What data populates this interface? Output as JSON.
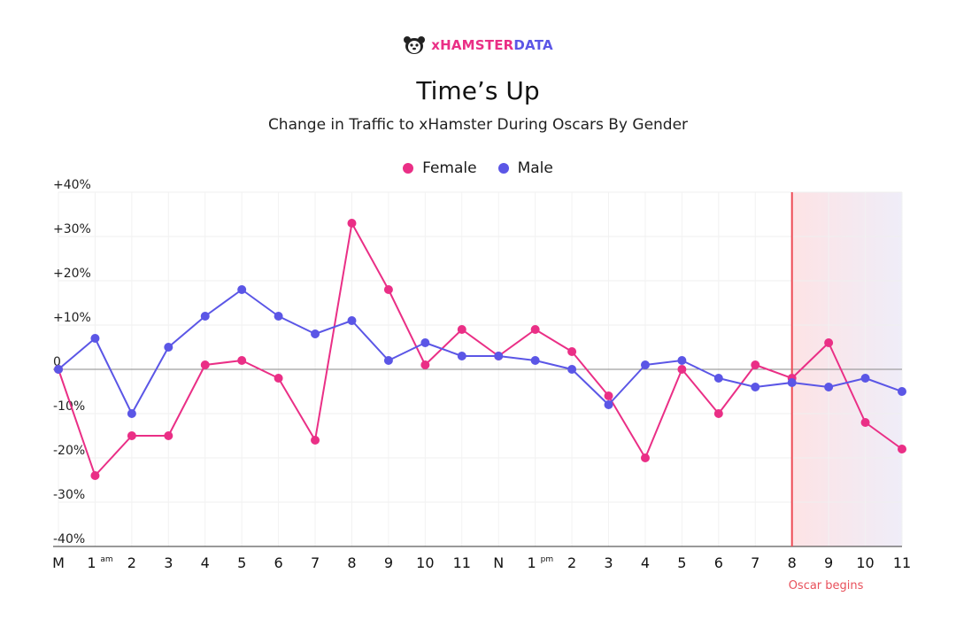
{
  "brand": {
    "text_x": "xHAMSTER",
    "text_data": "DATA",
    "icon": "hamster-logo-icon"
  },
  "chart_data": {
    "type": "line",
    "title": "Time’s Up",
    "subtitle": "Change in Traffic to xHamster During Oscars By Gender",
    "ylim": [
      -40,
      40
    ],
    "yticks": [
      {
        "value": 40,
        "label": "+40%"
      },
      {
        "value": 30,
        "label": "+30%"
      },
      {
        "value": 20,
        "label": "+20%"
      },
      {
        "value": 10,
        "label": "+10%"
      },
      {
        "value": 0,
        "label": "0"
      },
      {
        "value": -10,
        "label": "-10%"
      },
      {
        "value": -20,
        "label": "-20%"
      },
      {
        "value": -30,
        "label": "-30%"
      },
      {
        "value": -40,
        "label": "-40%"
      }
    ],
    "categories": [
      "M",
      "1",
      "2",
      "3",
      "4",
      "5",
      "6",
      "7",
      "8",
      "9",
      "10",
      "11",
      "N",
      "1",
      "2",
      "3",
      "4",
      "5",
      "6",
      "7",
      "8",
      "9",
      "10",
      "11"
    ],
    "category_suffixes": {
      "1": "am",
      "13": "pm"
    },
    "grid": true,
    "legend_position": "top-center",
    "series": [
      {
        "name": "Female",
        "color": "#ea2f86",
        "values": [
          0,
          -24,
          -15,
          -15,
          1,
          2,
          -2,
          -16,
          33,
          18,
          1,
          9,
          3,
          9,
          4,
          -6,
          -20,
          0,
          -10,
          1,
          -2,
          6,
          -12,
          -18
        ]
      },
      {
        "name": "Male",
        "color": "#5b56e6",
        "values": [
          0,
          7,
          -10,
          5,
          12,
          18,
          12,
          8,
          11,
          2,
          6,
          3,
          3,
          2,
          0,
          -8,
          1,
          2,
          -2,
          -4,
          -3,
          -4,
          -2,
          -5
        ]
      }
    ],
    "highlight": {
      "from_index": 20,
      "to_index": 23,
      "label": "Oscar begins",
      "line_color": "#ee4b55",
      "fill_start": "#fde3e5",
      "fill_end": "#efedf8"
    }
  }
}
